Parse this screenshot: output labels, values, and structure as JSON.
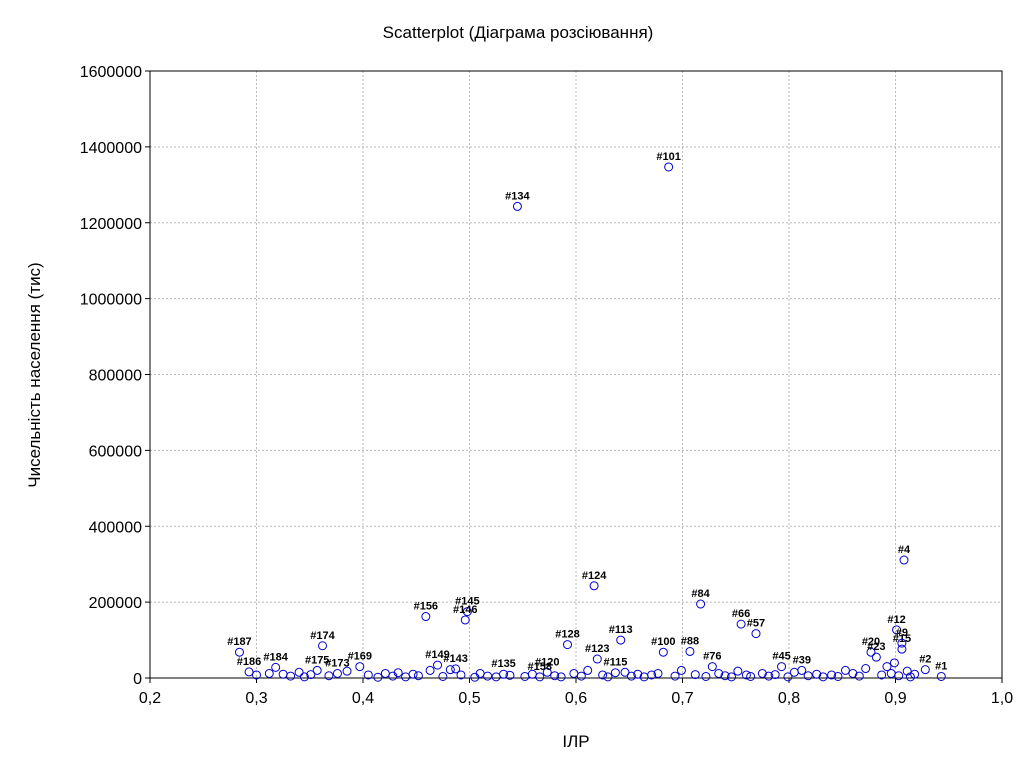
{
  "chart_data": {
    "type": "scatter",
    "title": "Scatterplot (Діаграма розсіювання)",
    "xlabel": "ІЛР",
    "ylabel": "Чисельність населення (тис)",
    "xlim": [
      0.2,
      1.0
    ],
    "ylim": [
      0,
      1600000
    ],
    "grid": true,
    "x_ticks": [
      0.2,
      0.3,
      0.4,
      0.5,
      0.6,
      0.7,
      0.8,
      0.9,
      1.0
    ],
    "x_tick_labels": [
      "0,2",
      "0,3",
      "0,4",
      "0,5",
      "0,6",
      "0,7",
      "0,8",
      "0,9",
      "1,0"
    ],
    "y_ticks": [
      0,
      200000,
      400000,
      600000,
      800000,
      1000000,
      1200000,
      1400000,
      1600000
    ],
    "y_tick_labels": [
      "0",
      "200000",
      "400000",
      "600000",
      "800000",
      "1000000",
      "1200000",
      "1400000",
      "1600000"
    ],
    "points": [
      {
        "label": "#101",
        "x": 0.687,
        "y": 1347000
      },
      {
        "label": "#134",
        "x": 0.545,
        "y": 1243000
      },
      {
        "label": "#4",
        "x": 0.908,
        "y": 311000
      },
      {
        "label": "#124",
        "x": 0.617,
        "y": 243000
      },
      {
        "label": "#84",
        "x": 0.717,
        "y": 195000
      },
      {
        "label": "#156",
        "x": 0.459,
        "y": 162000
      },
      {
        "label": "#145",
        "x": 0.498,
        "y": 175000
      },
      {
        "label": "#146",
        "x": 0.496,
        "y": 153000
      },
      {
        "label": "#66",
        "x": 0.755,
        "y": 142000
      },
      {
        "label": "#12",
        "x": 0.901,
        "y": 127000
      },
      {
        "label": "#57",
        "x": 0.769,
        "y": 117000
      },
      {
        "label": "#113",
        "x": 0.642,
        "y": 100000
      },
      {
        "label": "#128",
        "x": 0.592,
        "y": 88000
      },
      {
        "label": "#174",
        "x": 0.362,
        "y": 85000
      },
      {
        "label": "#15",
        "x": 0.906,
        "y": 76000
      },
      {
        "label": "#187",
        "x": 0.284,
        "y": 68000
      },
      {
        "label": "#88",
        "x": 0.707,
        "y": 70000
      },
      {
        "label": "#2",
        "x": 0.928,
        "y": 22000
      },
      {
        "label": "#1",
        "x": 0.943,
        "y": 4000
      },
      {
        "label": "#169",
        "x": 0.397,
        "y": 30000
      },
      {
        "label": "#149",
        "x": 0.47,
        "y": 34000
      },
      {
        "label": "#143",
        "x": 0.487,
        "y": 24000
      },
      {
        "label": "#135",
        "x": 0.532,
        "y": 10000
      },
      {
        "label": "#120",
        "x": 0.573,
        "y": 15000
      },
      {
        "label": "#123",
        "x": 0.62,
        "y": 50000
      },
      {
        "label": "#115",
        "x": 0.637,
        "y": 14000
      },
      {
        "label": "#76",
        "x": 0.728,
        "y": 30000
      },
      {
        "label": "#45",
        "x": 0.793,
        "y": 30000
      },
      {
        "label": "#39",
        "x": 0.812,
        "y": 20000
      },
      {
        "label": "#20",
        "x": 0.877,
        "y": 68000
      },
      {
        "label": "#23",
        "x": 0.882,
        "y": 55000
      },
      {
        "label": "#9",
        "x": 0.906,
        "y": 92000
      },
      {
        "label": "#184",
        "x": 0.318,
        "y": 28000
      },
      {
        "label": "#186",
        "x": 0.293,
        "y": 16000
      },
      {
        "label": "#175",
        "x": 0.357,
        "y": 20000
      },
      {
        "label": "#173",
        "x": 0.376,
        "y": 12000
      },
      {
        "label": "#158",
        "x": 0.566,
        "y": 3000
      },
      {
        "label": "#100",
        "x": 0.682,
        "y": 68000
      },
      {
        "label": "",
        "x": 0.3,
        "y": 8000
      },
      {
        "label": "",
        "x": 0.312,
        "y": 12000
      },
      {
        "label": "",
        "x": 0.325,
        "y": 10000
      },
      {
        "label": "",
        "x": 0.332,
        "y": 5000
      },
      {
        "label": "",
        "x": 0.34,
        "y": 15000
      },
      {
        "label": "",
        "x": 0.345,
        "y": 3000
      },
      {
        "label": "",
        "x": 0.351,
        "y": 9000
      },
      {
        "label": "",
        "x": 0.368,
        "y": 6000
      },
      {
        "label": "",
        "x": 0.385,
        "y": 18000
      },
      {
        "label": "",
        "x": 0.405,
        "y": 8000
      },
      {
        "label": "",
        "x": 0.414,
        "y": 2000
      },
      {
        "label": "",
        "x": 0.421,
        "y": 12000
      },
      {
        "label": "",
        "x": 0.428,
        "y": 5000
      },
      {
        "label": "",
        "x": 0.433,
        "y": 14000
      },
      {
        "label": "",
        "x": 0.44,
        "y": 3000
      },
      {
        "label": "",
        "x": 0.447,
        "y": 10000
      },
      {
        "label": "",
        "x": 0.452,
        "y": 6000
      },
      {
        "label": "",
        "x": 0.463,
        "y": 20000
      },
      {
        "label": "",
        "x": 0.475,
        "y": 4000
      },
      {
        "label": "",
        "x": 0.482,
        "y": 22000
      },
      {
        "label": "",
        "x": 0.492,
        "y": 8000
      },
      {
        "label": "",
        "x": 0.505,
        "y": 2000
      },
      {
        "label": "",
        "x": 0.51,
        "y": 12000
      },
      {
        "label": "",
        "x": 0.517,
        "y": 5000
      },
      {
        "label": "",
        "x": 0.525,
        "y": 3000
      },
      {
        "label": "",
        "x": 0.538,
        "y": 7000
      },
      {
        "label": "",
        "x": 0.552,
        "y": 4000
      },
      {
        "label": "",
        "x": 0.559,
        "y": 10000
      },
      {
        "label": "",
        "x": 0.58,
        "y": 6000
      },
      {
        "label": "",
        "x": 0.586,
        "y": 3000
      },
      {
        "label": "",
        "x": 0.598,
        "y": 12000
      },
      {
        "label": "",
        "x": 0.605,
        "y": 5000
      },
      {
        "label": "",
        "x": 0.611,
        "y": 20000
      },
      {
        "label": "",
        "x": 0.625,
        "y": 8000
      },
      {
        "label": "",
        "x": 0.63,
        "y": 3000
      },
      {
        "label": "",
        "x": 0.646,
        "y": 15000
      },
      {
        "label": "",
        "x": 0.652,
        "y": 5000
      },
      {
        "label": "",
        "x": 0.658,
        "y": 10000
      },
      {
        "label": "",
        "x": 0.664,
        "y": 3000
      },
      {
        "label": "",
        "x": 0.671,
        "y": 8000
      },
      {
        "label": "",
        "x": 0.677,
        "y": 12000
      },
      {
        "label": "",
        "x": 0.693,
        "y": 5000
      },
      {
        "label": "",
        "x": 0.699,
        "y": 20000
      },
      {
        "label": "",
        "x": 0.712,
        "y": 9000
      },
      {
        "label": "",
        "x": 0.722,
        "y": 4000
      },
      {
        "label": "",
        "x": 0.734,
        "y": 12000
      },
      {
        "label": "",
        "x": 0.74,
        "y": 6000
      },
      {
        "label": "",
        "x": 0.746,
        "y": 3000
      },
      {
        "label": "",
        "x": 0.752,
        "y": 18000
      },
      {
        "label": "",
        "x": 0.76,
        "y": 8000
      },
      {
        "label": "",
        "x": 0.764,
        "y": 4000
      },
      {
        "label": "",
        "x": 0.775,
        "y": 12000
      },
      {
        "label": "",
        "x": 0.781,
        "y": 5000
      },
      {
        "label": "",
        "x": 0.787,
        "y": 9000
      },
      {
        "label": "",
        "x": 0.799,
        "y": 3000
      },
      {
        "label": "",
        "x": 0.805,
        "y": 15000
      },
      {
        "label": "",
        "x": 0.818,
        "y": 6000
      },
      {
        "label": "",
        "x": 0.826,
        "y": 10000
      },
      {
        "label": "",
        "x": 0.832,
        "y": 3000
      },
      {
        "label": "",
        "x": 0.84,
        "y": 8000
      },
      {
        "label": "",
        "x": 0.846,
        "y": 4000
      },
      {
        "label": "",
        "x": 0.853,
        "y": 20000
      },
      {
        "label": "",
        "x": 0.86,
        "y": 12000
      },
      {
        "label": "",
        "x": 0.866,
        "y": 5000
      },
      {
        "label": "",
        "x": 0.872,
        "y": 25000
      },
      {
        "label": "",
        "x": 0.887,
        "y": 8000
      },
      {
        "label": "",
        "x": 0.892,
        "y": 30000
      },
      {
        "label": "",
        "x": 0.896,
        "y": 12000
      },
      {
        "label": "",
        "x": 0.899,
        "y": 40000
      },
      {
        "label": "",
        "x": 0.903,
        "y": 6000
      },
      {
        "label": "",
        "x": 0.911,
        "y": 18000
      },
      {
        "label": "",
        "x": 0.914,
        "y": 3000
      },
      {
        "label": "",
        "x": 0.918,
        "y": 10000
      }
    ]
  }
}
